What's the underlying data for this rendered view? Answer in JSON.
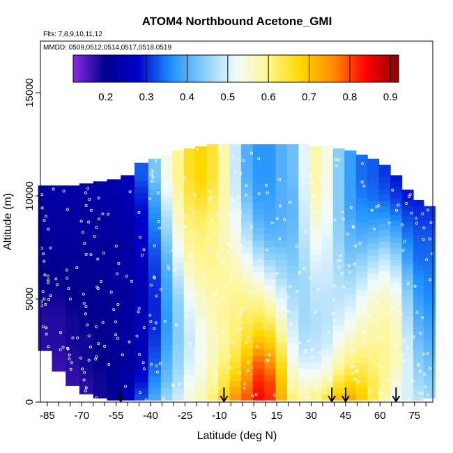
{
  "chart_data": {
    "type": "heatmap",
    "title": "ATOM4 Northbound Acetone_GMI",
    "flights_note": "Flts: 7,8,9,10,11,12",
    "dates_note": "MMDD: 0509,0512,0514,0517,0518,0519",
    "xlabel": "Latitude (deg N)",
    "ylabel": "Altitude (m)",
    "xlim": [
      -88,
      83
    ],
    "ylim": [
      0,
      17500
    ],
    "x_ticks": [
      "-85",
      "-70",
      "-55",
      "-40",
      "-25",
      "-10",
      "5",
      "15",
      "30",
      "45",
      "60",
      "75"
    ],
    "x_tick_values": [
      -85,
      -70,
      -55,
      -40,
      -25,
      -10,
      5,
      15,
      30,
      45,
      60,
      75
    ],
    "y_ticks": [
      "0",
      "5000",
      "10000",
      "15000"
    ],
    "y_tick_values": [
      0,
      5000,
      10000,
      15000
    ],
    "colorbar": {
      "range": [
        0.12,
        0.92
      ],
      "tick_labels": [
        "0.2",
        "0.3",
        "0.4",
        "0.5",
        "0.6",
        "0.7",
        "0.8",
        "0.9"
      ],
      "tick_values": [
        0.2,
        0.3,
        0.4,
        0.5,
        0.6,
        0.7,
        0.8,
        0.9
      ]
    },
    "arrow_latitudes": [
      -53,
      -8,
      39,
      45,
      67
    ],
    "latitude_columns": [
      -86,
      -80,
      -74,
      -68,
      -62,
      -56,
      -50,
      -44,
      -38,
      -33,
      -28,
      -23,
      -18,
      -13,
      -8,
      -3,
      2,
      7,
      12,
      17,
      22,
      27,
      32,
      37,
      42,
      47,
      52,
      57,
      62,
      67,
      72,
      77,
      81
    ],
    "column_top_altitude": [
      10500,
      10500,
      10500,
      10600,
      10700,
      10800,
      11000,
      11600,
      11800,
      12000,
      12200,
      12300,
      12400,
      12500,
      12500,
      12500,
      12500,
      12500,
      12500,
      12500,
      12500,
      12500,
      12400,
      12400,
      12300,
      12200,
      12000,
      11800,
      11500,
      11000,
      10300,
      9800,
      9500
    ],
    "column_bottom_altitude": [
      2500,
      1500,
      800,
      400,
      200,
      100,
      100,
      100,
      100,
      100,
      100,
      100,
      100,
      100,
      100,
      100,
      100,
      100,
      100,
      100,
      100,
      100,
      100,
      100,
      100,
      100,
      100,
      100,
      100,
      100,
      100,
      100,
      200
    ],
    "altitude_levels": [
      0,
      1000,
      2000,
      3000,
      4000,
      5000,
      6000,
      7000,
      8000,
      9000,
      10000,
      11000,
      12000
    ],
    "acetone_grid": [
      [
        0.15,
        0.16,
        0.17,
        0.18,
        0.18,
        0.19,
        0.2,
        0.21,
        0.22,
        0.22,
        0.23,
        0.23,
        0.23
      ],
      [
        0.15,
        0.16,
        0.17,
        0.18,
        0.18,
        0.19,
        0.2,
        0.21,
        0.22,
        0.22,
        0.23,
        0.23,
        0.23
      ],
      [
        0.16,
        0.17,
        0.18,
        0.19,
        0.19,
        0.2,
        0.2,
        0.21,
        0.22,
        0.22,
        0.23,
        0.23,
        0.23
      ],
      [
        0.17,
        0.18,
        0.19,
        0.19,
        0.2,
        0.2,
        0.21,
        0.21,
        0.22,
        0.22,
        0.23,
        0.23,
        0.23
      ],
      [
        0.19,
        0.19,
        0.2,
        0.2,
        0.2,
        0.21,
        0.21,
        0.21,
        0.22,
        0.22,
        0.23,
        0.23,
        0.23
      ],
      [
        0.22,
        0.21,
        0.21,
        0.21,
        0.21,
        0.21,
        0.22,
        0.22,
        0.22,
        0.23,
        0.24,
        0.24,
        0.24
      ],
      [
        0.27,
        0.24,
        0.22,
        0.22,
        0.22,
        0.22,
        0.23,
        0.23,
        0.23,
        0.24,
        0.25,
        0.26,
        0.26
      ],
      [
        0.33,
        0.29,
        0.26,
        0.25,
        0.25,
        0.25,
        0.25,
        0.26,
        0.27,
        0.28,
        0.3,
        0.33,
        0.33
      ],
      [
        0.4,
        0.36,
        0.33,
        0.31,
        0.3,
        0.3,
        0.31,
        0.32,
        0.34,
        0.36,
        0.39,
        0.43,
        0.43
      ],
      [
        0.46,
        0.42,
        0.4,
        0.38,
        0.37,
        0.38,
        0.39,
        0.41,
        0.44,
        0.47,
        0.51,
        0.54,
        0.54
      ],
      [
        0.5,
        0.47,
        0.45,
        0.44,
        0.44,
        0.45,
        0.48,
        0.51,
        0.54,
        0.56,
        0.58,
        0.6,
        0.6
      ],
      [
        0.55,
        0.52,
        0.5,
        0.49,
        0.5,
        0.52,
        0.55,
        0.58,
        0.6,
        0.62,
        0.64,
        0.66,
        0.66
      ],
      [
        0.58,
        0.55,
        0.53,
        0.53,
        0.54,
        0.56,
        0.58,
        0.6,
        0.61,
        0.63,
        0.66,
        0.68,
        0.68
      ],
      [
        0.62,
        0.59,
        0.57,
        0.56,
        0.57,
        0.58,
        0.59,
        0.6,
        0.6,
        0.61,
        0.63,
        0.65,
        0.65
      ],
      [
        0.7,
        0.64,
        0.61,
        0.59,
        0.59,
        0.59,
        0.59,
        0.58,
        0.57,
        0.57,
        0.58,
        0.58,
        0.58
      ],
      [
        0.76,
        0.7,
        0.65,
        0.62,
        0.61,
        0.6,
        0.58,
        0.56,
        0.54,
        0.52,
        0.5,
        0.49,
        0.49
      ],
      [
        0.8,
        0.76,
        0.71,
        0.66,
        0.63,
        0.6,
        0.56,
        0.52,
        0.48,
        0.45,
        0.42,
        0.4,
        0.4
      ],
      [
        0.84,
        0.82,
        0.78,
        0.7,
        0.64,
        0.59,
        0.53,
        0.48,
        0.43,
        0.4,
        0.38,
        0.37,
        0.37
      ],
      [
        0.82,
        0.8,
        0.75,
        0.68,
        0.62,
        0.56,
        0.5,
        0.45,
        0.41,
        0.39,
        0.38,
        0.37,
        0.37
      ],
      [
        0.72,
        0.7,
        0.66,
        0.61,
        0.56,
        0.51,
        0.47,
        0.44,
        0.41,
        0.4,
        0.4,
        0.4,
        0.4
      ],
      [
        0.62,
        0.58,
        0.54,
        0.51,
        0.49,
        0.47,
        0.45,
        0.43,
        0.42,
        0.41,
        0.41,
        0.42,
        0.42
      ],
      [
        0.6,
        0.54,
        0.5,
        0.47,
        0.46,
        0.46,
        0.46,
        0.47,
        0.48,
        0.49,
        0.5,
        0.51,
        0.51
      ],
      [
        0.62,
        0.55,
        0.5,
        0.48,
        0.47,
        0.48,
        0.49,
        0.51,
        0.53,
        0.55,
        0.57,
        0.58,
        0.58
      ],
      [
        0.66,
        0.58,
        0.52,
        0.49,
        0.48,
        0.48,
        0.49,
        0.5,
        0.51,
        0.52,
        0.53,
        0.54,
        0.54
      ],
      [
        0.72,
        0.64,
        0.57,
        0.53,
        0.5,
        0.48,
        0.47,
        0.46,
        0.45,
        0.44,
        0.44,
        0.44,
        0.44
      ],
      [
        0.74,
        0.67,
        0.61,
        0.56,
        0.52,
        0.49,
        0.46,
        0.43,
        0.41,
        0.39,
        0.38,
        0.38,
        0.38
      ],
      [
        0.7,
        0.66,
        0.62,
        0.58,
        0.55,
        0.52,
        0.48,
        0.44,
        0.4,
        0.37,
        0.35,
        0.34,
        0.34
      ],
      [
        0.64,
        0.63,
        0.61,
        0.59,
        0.57,
        0.55,
        0.51,
        0.46,
        0.41,
        0.37,
        0.34,
        0.33,
        0.33
      ],
      [
        0.58,
        0.6,
        0.6,
        0.59,
        0.58,
        0.56,
        0.53,
        0.48,
        0.42,
        0.37,
        0.33,
        0.31,
        0.31
      ],
      [
        0.52,
        0.55,
        0.57,
        0.57,
        0.56,
        0.54,
        0.5,
        0.45,
        0.4,
        0.35,
        0.31,
        0.29,
        0.29
      ],
      [
        0.5,
        0.5,
        0.5,
        0.49,
        0.47,
        0.45,
        0.42,
        0.38,
        0.35,
        0.32,
        0.29,
        0.28,
        0.28
      ],
      [
        0.48,
        0.46,
        0.44,
        0.42,
        0.4,
        0.38,
        0.36,
        0.34,
        0.33,
        0.31,
        0.29,
        0.28,
        0.28
      ],
      [
        0.46,
        0.44,
        0.42,
        0.4,
        0.38,
        0.36,
        0.35,
        0.34,
        0.33,
        0.31,
        0.3,
        0.29,
        0.29
      ]
    ],
    "colors": {
      "scale": [
        "#8a2be2",
        "#00008b",
        "#0000cd",
        "#1e90ff",
        "#87cefa",
        "#f0fbff",
        "#fff68f",
        "#ffd700",
        "#ff8c00",
        "#ff0000",
        "#8b0000"
      ]
    },
    "grid": false,
    "legend": "colorbar top"
  }
}
